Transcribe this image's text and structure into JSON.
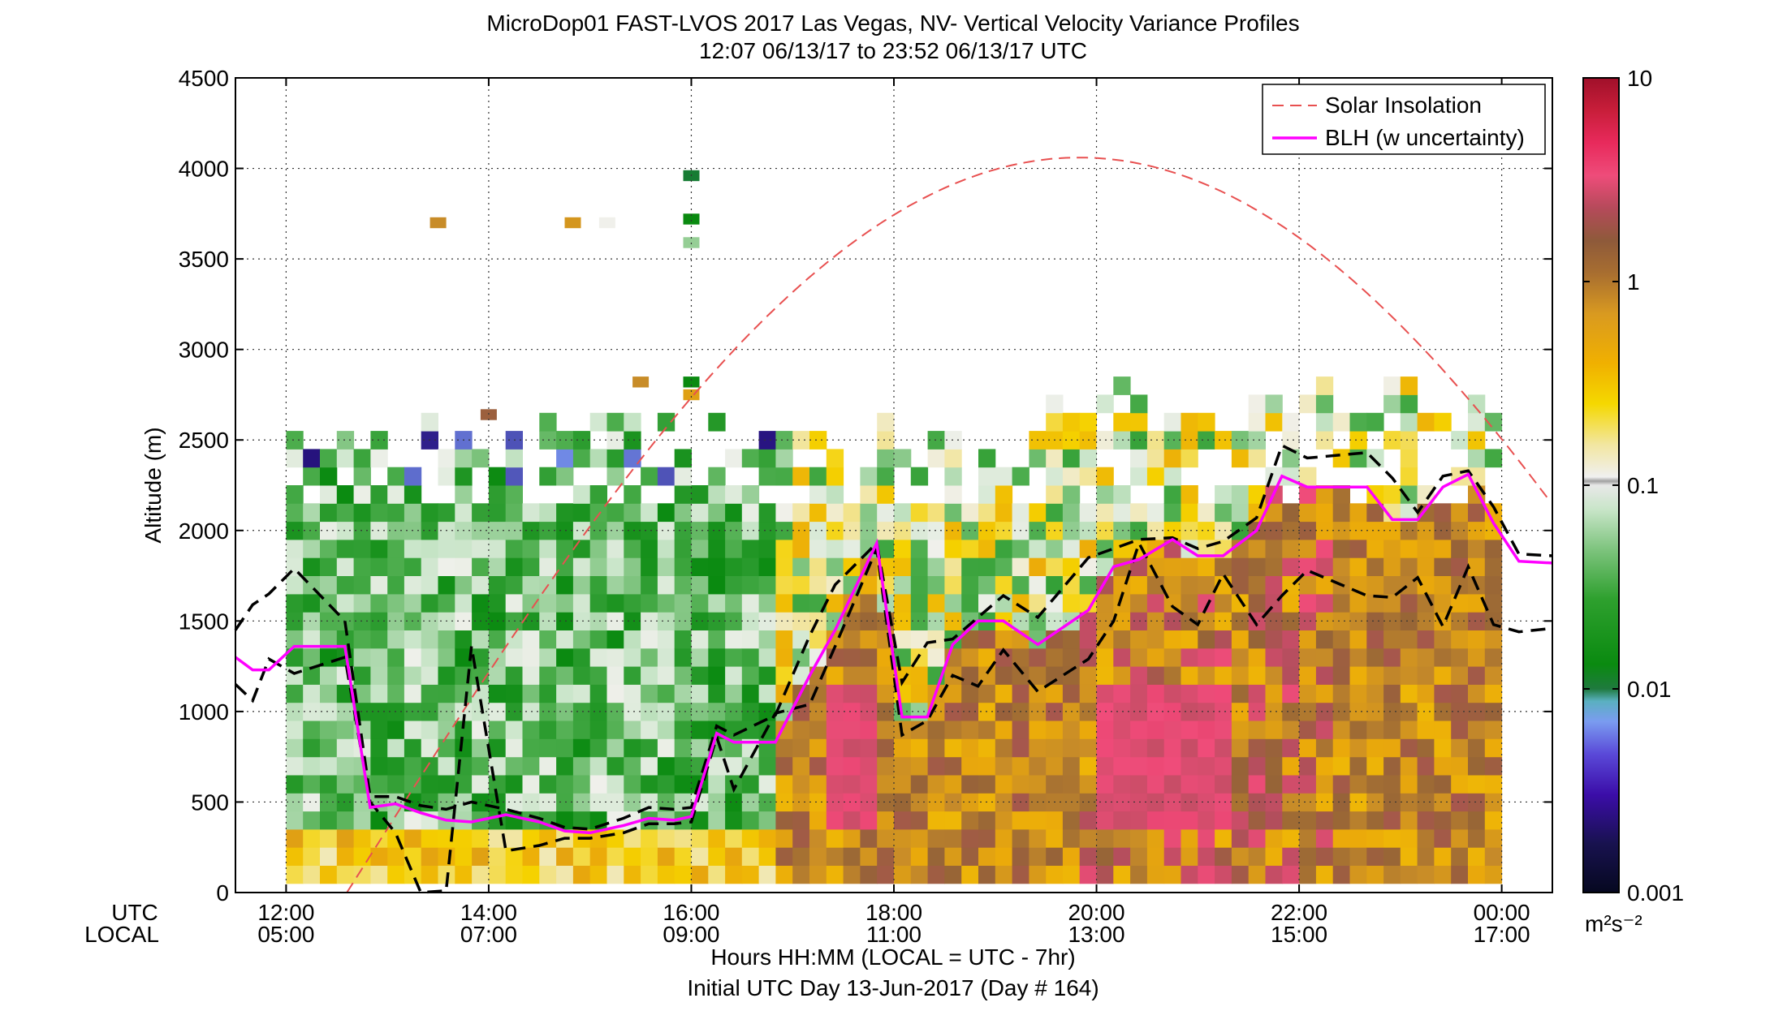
{
  "chart_data": {
    "type": "heatmap",
    "title": "MicroDop01 FAST-LVOS 2017 Las Vegas, NV- Vertical Velocity Variance Profiles",
    "subtitle": "12:07 06/13/17 to 23:52 06/13/17  UTC",
    "ylabel": "Altitude (m)",
    "xlabel_line1": "Hours HH:MM  (LOCAL = UTC - 7hr)",
    "xlabel_line2": "Initial UTC Day 13-Jun-2017 (Day # 164)",
    "row_label_utc": "UTC",
    "row_label_local": "LOCAL",
    "x_range_hours_utc": [
      11.5,
      24.5
    ],
    "ylim": [
      0,
      4500
    ],
    "y_ticks": [
      "0",
      "500",
      "1000",
      "1500",
      "2000",
      "2500",
      "3000",
      "3500",
      "4000",
      "4500"
    ],
    "x_ticks_utc": [
      "12:00",
      "14:00",
      "16:00",
      "18:00",
      "20:00",
      "22:00",
      "00:00"
    ],
    "x_ticks_local": [
      "05:00",
      "07:00",
      "09:00",
      "11:00",
      "13:00",
      "15:00",
      "17:00"
    ],
    "x_tick_hours": [
      12,
      14,
      16,
      18,
      20,
      22,
      24
    ],
    "grid": true,
    "colorbar": {
      "scale": "log",
      "range": [
        0.001,
        10
      ],
      "tick_labels": [
        "0.001",
        "0.01",
        "0.1",
        "1",
        "10"
      ],
      "units_label": "m²s⁻²"
    },
    "legend": {
      "placement": "top-right",
      "entries": [
        {
          "label": "Solar Insolation",
          "color": "#e85050",
          "style": "dashed"
        },
        {
          "label": "BLH (w uncertainty)",
          "color": "#ff00ff",
          "style": "solid"
        }
      ]
    },
    "blh_series": {
      "x_hours": [
        11.5,
        11.67,
        11.83,
        12.08,
        12.58,
        12.83,
        13.08,
        13.33,
        13.58,
        13.83,
        14.17,
        14.5,
        14.75,
        15.0,
        15.33,
        15.58,
        15.83,
        16.0,
        16.25,
        16.42,
        16.83,
        17.17,
        17.42,
        17.83,
        18.08,
        18.33,
        18.58,
        18.83,
        19.08,
        19.42,
        19.92,
        20.17,
        20.42,
        20.75,
        21.0,
        21.25,
        21.58,
        21.83,
        22.08,
        22.67,
        22.92,
        23.17,
        23.42,
        23.67,
        23.92,
        24.17,
        24.5
      ],
      "blh_m": [
        1300,
        1230,
        1230,
        1360,
        1360,
        470,
        490,
        440,
        400,
        390,
        430,
        390,
        340,
        330,
        370,
        410,
        400,
        420,
        880,
        830,
        830,
        1200,
        1450,
        1930,
        970,
        970,
        1370,
        1500,
        1500,
        1370,
        1560,
        1800,
        1840,
        1950,
        1860,
        1860,
        2000,
        2300,
        2240,
        2240,
        2060,
        2060,
        2240,
        2310,
        2040,
        1830,
        1820
      ],
      "upper_m": [
        1450,
        1590,
        1650,
        1790,
        1500,
        530,
        530,
        480,
        460,
        500,
        460,
        410,
        360,
        350,
        410,
        470,
        460,
        470,
        920,
        870,
        980,
        1420,
        1700,
        1930,
        1160,
        1380,
        1400,
        1520,
        1640,
        1520,
        1850,
        1900,
        1950,
        1960,
        1900,
        1940,
        2070,
        2470,
        2400,
        2430,
        2290,
        2100,
        2300,
        2330,
        2130,
        1870,
        1860
      ],
      "lower_m": [
        1150,
        1060,
        1290,
        1210,
        1300,
        500,
        330,
        0,
        10,
        1360,
        230,
        260,
        300,
        300,
        330,
        380,
        380,
        390,
        860,
        570,
        990,
        1040,
        1360,
        1900,
        870,
        950,
        1200,
        1140,
        1340,
        1110,
        1290,
        1500,
        1930,
        1580,
        1480,
        1760,
        1480,
        1640,
        1780,
        1640,
        1630,
        1740,
        1470,
        1800,
        1480,
        1440,
        1460
      ]
    },
    "solar_insolation": {
      "peak_hour_utc": 19.83,
      "peak_altitude_equiv_m": 4060
    },
    "colors": {
      "blh": "#ff00ff",
      "uncertainty": "#000000",
      "solar": "#e85050"
    }
  }
}
